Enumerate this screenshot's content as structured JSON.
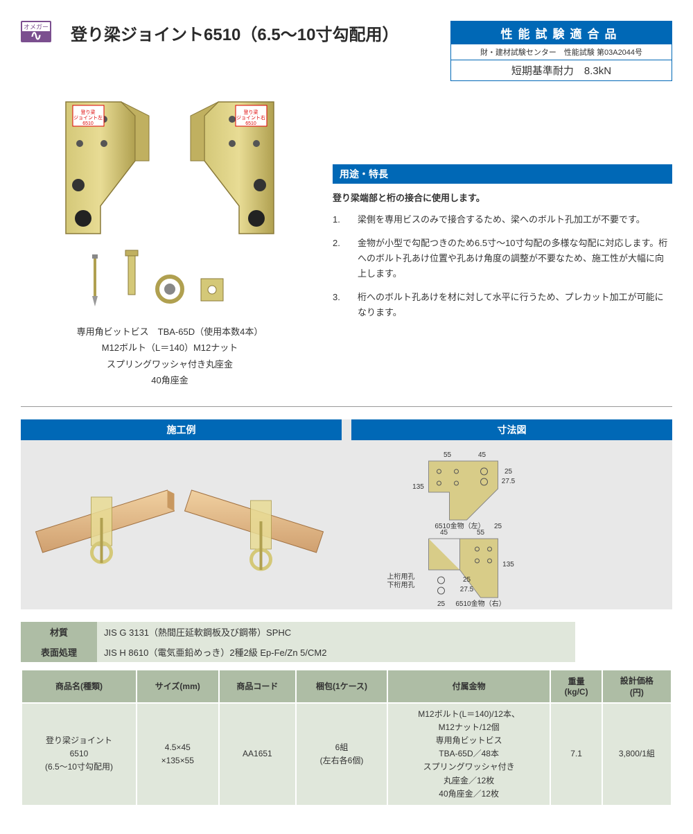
{
  "colors": {
    "primary_blue": "#0068b6",
    "table_header_bg": "#aebda5",
    "table_cell_bg": "#e0e7db",
    "logo_purple": "#7b4f8f",
    "panel_bg": "#e8e8e8",
    "bracket_fill": "#d4c878",
    "bracket_edge": "#8a7a3a",
    "wood_light": "#e8c090",
    "wood_dark": "#c89860"
  },
  "logo": {
    "top": "オメガー"
  },
  "title": "登り梁ジョイント6510（6.5～10寸勾配用）",
  "cert": {
    "top": "性能試験適合品",
    "mid": "財・建材試験センター　性能試験 第03A2044号",
    "bot": "短期基準耐力　8.3kN"
  },
  "caption_lines": [
    "専用角ビットビス　TBA-65D（使用本数4本）",
    "M12ボルト（L＝140）M12ナット",
    "スプリングワッシャ付き丸座金",
    "40角座金"
  ],
  "usage": {
    "heading": "用途・特長",
    "lead": "登り梁端部と桁の接合に使用します。",
    "items": [
      "梁側を専用ビスのみで接合するため、梁へのボルト孔加工が不要です。",
      "金物が小型で勾配つきのため6.5寸～10寸勾配の多様な勾配に対応します。桁へのボルト孔あけ位置や孔あけ角度の調整が不要なため、施工性が大幅に向上します。",
      "桁へのボルト孔あけを材に対して水平に行うため、プレカット加工が可能になります。"
    ]
  },
  "panels": {
    "example": "施工例",
    "dimension": "寸法図"
  },
  "dimensions": {
    "w1": "55",
    "w2": "45",
    "h": "135",
    "h1": "25",
    "h2": "27.5",
    "b": "25",
    "label_left": "6510金物（左）",
    "label_right": "6510金物（右）",
    "upper_hole": "上桁用孔",
    "lower_hole": "下桁用孔"
  },
  "material": {
    "rows": [
      {
        "label": "材質",
        "value": "JIS G 3131（熱間圧延軟鋼板及び鋼帯）SPHC"
      },
      {
        "label": "表面処理",
        "value": "JIS H 8610（電気亜鉛めっき）2種2級 Ep-Fe/Zn 5/CM2"
      }
    ]
  },
  "spec": {
    "headers": [
      "商品名(種類)",
      "サイズ(mm)",
      "商品コード",
      "梱包(1ケース)",
      "付属金物",
      "重量\n(kg/C)",
      "設計価格\n(円)"
    ],
    "row": {
      "name": "登り梁ジョイント\n6510\n(6.5～10寸勾配用)",
      "size": "4.5×45\n×135×55",
      "code": "AA1651",
      "pack": "6組\n(左右各6個)",
      "parts": "M12ボルト(L＝140)/12本、\nM12ナット/12個\n専用角ビットビス\nTBA-65D／48本\nスプリングワッシャ付き\n丸座金／12枚\n40角座金／12枚",
      "weight": "7.1",
      "price": "3,800/1組"
    }
  }
}
